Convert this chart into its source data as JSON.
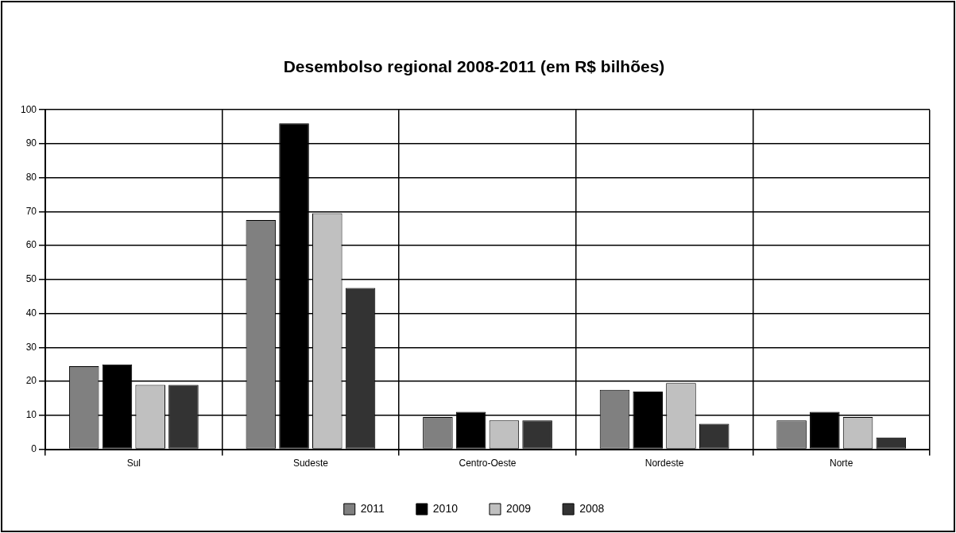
{
  "chart_data": {
    "type": "bar",
    "title": "Desembolso regional 2008-2011 (em R$ bilhões)",
    "categories": [
      "Sul",
      "Sudeste",
      "Centro-Oeste",
      "Nordeste",
      "Norte"
    ],
    "series": [
      {
        "name": "2011",
        "color": "#808080",
        "values": [
          24.5,
          67.5,
          9.5,
          17.5,
          8.5
        ]
      },
      {
        "name": "2010",
        "color": "#000000",
        "values": [
          25,
          96,
          11,
          17,
          11
        ]
      },
      {
        "name": "2009",
        "color": "#c0c0c0",
        "values": [
          19,
          69.5,
          8.5,
          19.5,
          9.5
        ]
      },
      {
        "name": "2008",
        "color": "#333333",
        "values": [
          19,
          47.5,
          8.5,
          7.5,
          3.5
        ]
      }
    ],
    "ylim": [
      0,
      100
    ],
    "yticks": [
      0,
      10,
      20,
      30,
      40,
      50,
      60,
      70,
      80,
      90,
      100
    ],
    "grid": true,
    "legend": "bottom"
  }
}
